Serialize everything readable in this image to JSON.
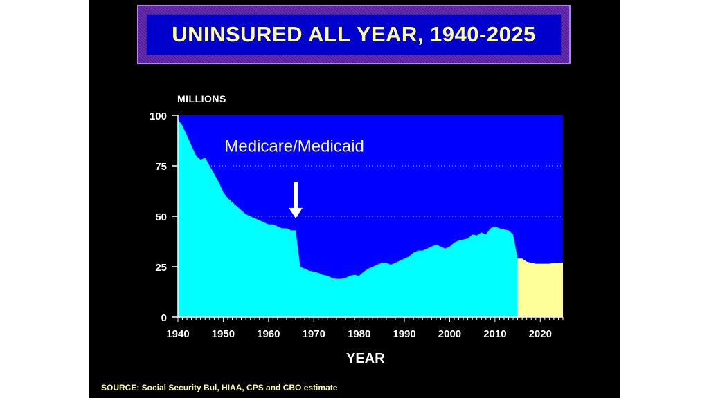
{
  "title": "UNINSURED ALL YEAR, 1940-2025",
  "source": "SOURCE: Social Security Bul, HIAA, CPS and CBO estimate",
  "colors": {
    "background": "#000000",
    "plot_area": "#0000ff",
    "historical": "#00ffff",
    "projection": "#ffff99",
    "title_text": "#ffff99"
  },
  "chart_data": {
    "type": "area",
    "title": "UNINSURED ALL YEAR, 1940-2025",
    "xlabel": "YEAR",
    "ylabel": "MILLIONS",
    "xlim": [
      1940,
      2025
    ],
    "ylim": [
      0,
      100
    ],
    "x_ticks": [
      1940,
      1950,
      1960,
      1970,
      1980,
      1990,
      2000,
      2010,
      2020
    ],
    "y_ticks": [
      0,
      25,
      50,
      75,
      100
    ],
    "gridlines": [
      50,
      75
    ],
    "grid": "dotted horizontal",
    "series": [
      {
        "name": "",
        "color": "#00ffff",
        "x": [
          1940,
          1941,
          1942,
          1943,
          1944,
          1945,
          1946,
          1947,
          1948,
          1949,
          1950,
          1951,
          1952,
          1953,
          1954,
          1955,
          1956,
          1957,
          1958,
          1959,
          1960,
          1961,
          1962,
          1963,
          1964,
          1965,
          1966,
          1967,
          1968,
          1969,
          1970,
          1971,
          1972,
          1973,
          1974,
          1975,
          1976,
          1977,
          1978,
          1979,
          1980,
          1981,
          1982,
          1983,
          1984,
          1985,
          1986,
          1987,
          1988,
          1989,
          1990,
          1991,
          1992,
          1993,
          1994,
          1995,
          1996,
          1997,
          1998,
          1999,
          2000,
          2001,
          2002,
          2003,
          2004,
          2005,
          2006,
          2007,
          2008,
          2009,
          2010,
          2011,
          2012,
          2013,
          2014,
          2015
        ],
        "y": [
          98,
          95,
          90,
          85,
          80,
          78,
          79,
          75,
          71,
          67,
          62,
          59,
          57,
          55,
          53,
          51,
          50,
          49,
          48,
          47,
          46,
          46,
          45,
          44,
          44,
          43,
          43,
          25,
          24,
          23,
          22.5,
          22,
          21,
          20.5,
          19.5,
          19,
          19,
          19.5,
          20.5,
          21,
          20.5,
          22.5,
          24,
          25,
          26,
          27,
          27,
          26,
          27,
          28,
          29,
          30,
          32,
          33,
          33,
          34,
          35,
          36,
          35,
          34,
          35,
          37,
          38,
          38.5,
          39,
          41,
          40.5,
          42,
          41,
          44,
          45,
          44,
          43.5,
          43,
          41,
          29
        ]
      },
      {
        "name": "",
        "color": "#ffff99",
        "x": [
          2015,
          2016,
          2017,
          2018,
          2019,
          2020,
          2021,
          2022,
          2023,
          2024,
          2025
        ],
        "y": [
          29,
          29,
          27.5,
          27,
          26.5,
          26.5,
          26.5,
          26.5,
          27,
          27,
          27
        ]
      }
    ],
    "annotations": [
      {
        "text": "Medicare/Medicaid",
        "x": 1950,
        "y": 82
      },
      {
        "text": "",
        "arrow": "down",
        "x": 1966,
        "y_from": 67,
        "y_to": 49
      }
    ]
  }
}
